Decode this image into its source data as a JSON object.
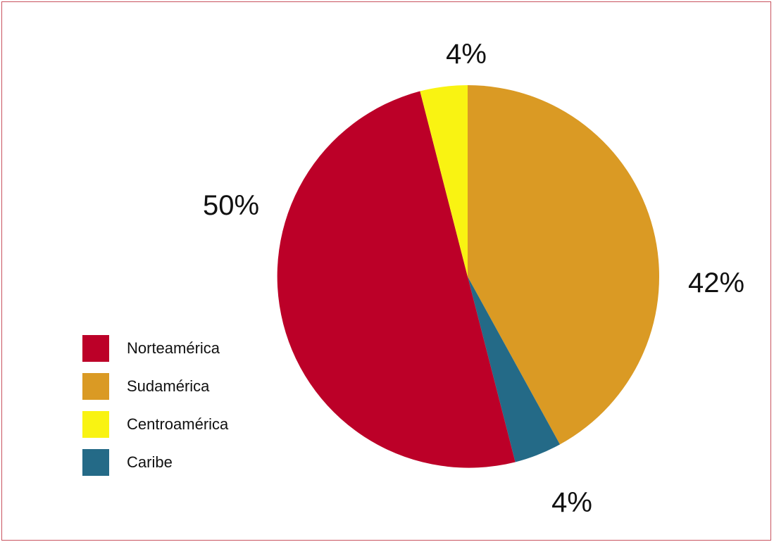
{
  "chart_data": {
    "type": "pie",
    "title": "",
    "unit": "%",
    "legend": {
      "placement": "bottom-left"
    },
    "series": [
      {
        "name": "Norteamérica",
        "value": 50,
        "label": "50%",
        "color": "#bc0028"
      },
      {
        "name": "Sudamérica",
        "value": 42,
        "label": "42%",
        "color": "#da9a24"
      },
      {
        "name": "Centroamérica",
        "value": 4,
        "label": "4%",
        "color": "#f9f312"
      },
      {
        "name": "Caribe",
        "value": 4,
        "label": "4%",
        "color": "#246a87"
      }
    ]
  }
}
